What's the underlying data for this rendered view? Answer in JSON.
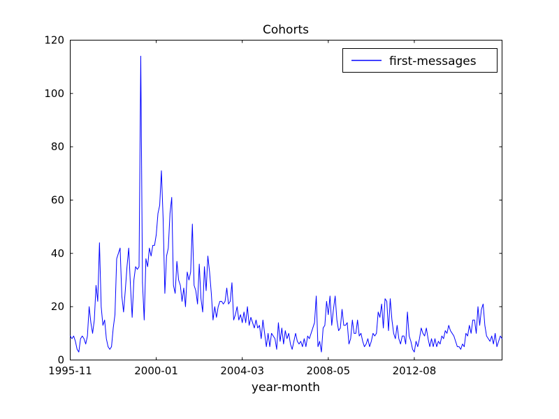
{
  "figure": {
    "background_color": "#ffffff",
    "frame_color": "#000000"
  },
  "chart_data": {
    "type": "line",
    "title": "Cohorts",
    "xlabel": "year-month",
    "ylabel": "",
    "ylim": [
      0,
      120
    ],
    "yticks": [
      0,
      20,
      40,
      60,
      80,
      100,
      120
    ],
    "xtick_indices": [
      0,
      50,
      100,
      150,
      200
    ],
    "xtick_labels": [
      "1995-11",
      "2000-01",
      "2004-03",
      "2008-05",
      "2012-08"
    ],
    "grid": "off",
    "legend_position": "upper right",
    "line_color": "#0000ff",
    "series": [
      {
        "name": "first-messages",
        "values": [
          9,
          8,
          9,
          7,
          4,
          3,
          8,
          9,
          8,
          6,
          9,
          20,
          14,
          10,
          15,
          28,
          22,
          44,
          20,
          13,
          15,
          8,
          5,
          4,
          5,
          12,
          17,
          38,
          40,
          42,
          24,
          18,
          26,
          35,
          42,
          28,
          16,
          30,
          35,
          34,
          35,
          114,
          29,
          15,
          38,
          35,
          42,
          39,
          43,
          43,
          47,
          55,
          58,
          71,
          53,
          25,
          39,
          42,
          55,
          61,
          28,
          25,
          37,
          30,
          28,
          22,
          27,
          20,
          33,
          30,
          33,
          51,
          28,
          26,
          21,
          36,
          23,
          18,
          35,
          26,
          39,
          33,
          25,
          15,
          20,
          16,
          20,
          22,
          22,
          21,
          22,
          27,
          21,
          22,
          29,
          15,
          17,
          20,
          15,
          17,
          14,
          18,
          14,
          20,
          13,
          16,
          14,
          12,
          15,
          12,
          13,
          8,
          15,
          10,
          5,
          10,
          5,
          10,
          9,
          8,
          4,
          14,
          7,
          12,
          6,
          11,
          8,
          10,
          6,
          4,
          7,
          10,
          7,
          6,
          7,
          5,
          8,
          5,
          9,
          8,
          10,
          12,
          14,
          24,
          5,
          7,
          3,
          12,
          13,
          22,
          17,
          24,
          13,
          19,
          24,
          15,
          11,
          12,
          19,
          13,
          13,
          14,
          6,
          8,
          15,
          10,
          10,
          15,
          9,
          10,
          7,
          5,
          6,
          8,
          5,
          7,
          10,
          9,
          10,
          18,
          16,
          21,
          12,
          23,
          22,
          11,
          23,
          15,
          10,
          8,
          13,
          8,
          6,
          9,
          9,
          6,
          18,
          9,
          7,
          4,
          3,
          7,
          5,
          8,
          12,
          10,
          9,
          12,
          8,
          5,
          8,
          5,
          8,
          5,
          7,
          6,
          9,
          8,
          11,
          10,
          13,
          11,
          10,
          9,
          7,
          5,
          5,
          4,
          6,
          5,
          10,
          9,
          13,
          10,
          15,
          15,
          10,
          20,
          13,
          19,
          21,
          13,
          9,
          8,
          7,
          9,
          6,
          10,
          5,
          7,
          9,
          8
        ]
      }
    ]
  }
}
